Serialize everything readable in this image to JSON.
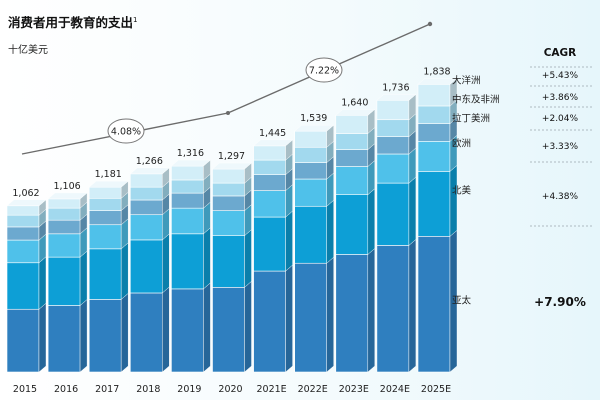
{
  "title": "消费者用于教育的支出",
  "title_footnote": "1",
  "unit": "十亿美元",
  "chart_data": {
    "type": "bar",
    "stacked": true,
    "categories": [
      "2015",
      "2016",
      "2017",
      "2018",
      "2019",
      "2020",
      "2021E",
      "2022E",
      "2023E",
      "2024E",
      "2025E"
    ],
    "totals": [
      1062,
      1106,
      1181,
      1266,
      1316,
      1297,
      1445,
      1539,
      1640,
      1736,
      1838
    ],
    "total_labels": [
      "1,062",
      "1,106",
      "1,181",
      "1,266",
      "1,316",
      "1,297",
      "1,445",
      "1,539",
      "1,640",
      "1,736",
      "1,838"
    ],
    "series": [
      {
        "name": "亚太",
        "color": "#2f7fbf",
        "cagr": "+7.90%",
        "values": [
          401,
          425,
          464,
          505,
          531,
          541,
          645,
          695,
          751,
          809,
          867
        ]
      },
      {
        "name": "北美",
        "color": "#0d9fd6",
        "cagr": "+4.38%",
        "values": [
          297,
          309,
          323,
          339,
          352,
          330,
          345,
          364,
          382,
          398,
          415
        ]
      },
      {
        "name": "欧洲",
        "color": "#4fc1ea",
        "cagr": "+3.33%",
        "values": [
          145,
          149,
          154,
          161,
          164,
          160,
          169,
          174,
          180,
          186,
          192
        ]
      },
      {
        "name": "拉丁美洲",
        "color": "#6ca9cf",
        "cagr": "+2.04%",
        "values": [
          84,
          87,
          90,
          94,
          96,
          94,
          102,
          105,
          108,
          111,
          113
        ]
      },
      {
        "name": "中东及非洲",
        "color": "#a2d9ee",
        "cagr": "+3.86%",
        "values": [
          75,
          77,
          79,
          82,
          84,
          82,
          93,
          98,
          103,
          108,
          113
        ]
      },
      {
        "name": "大洋洲",
        "color": "#d2eef8",
        "cagr": "+5.43%",
        "values": [
          60,
          59,
          71,
          85,
          89,
          90,
          91,
          103,
          116,
          124,
          138
        ]
      }
    ],
    "trend_annotations": [
      {
        "label": "4.08%",
        "period": "2015–2020"
      },
      {
        "label": "7.22%",
        "period": "2020–2025E"
      }
    ],
    "cagr_header": "CAGR",
    "ylim": [
      0,
      2000
    ]
  }
}
